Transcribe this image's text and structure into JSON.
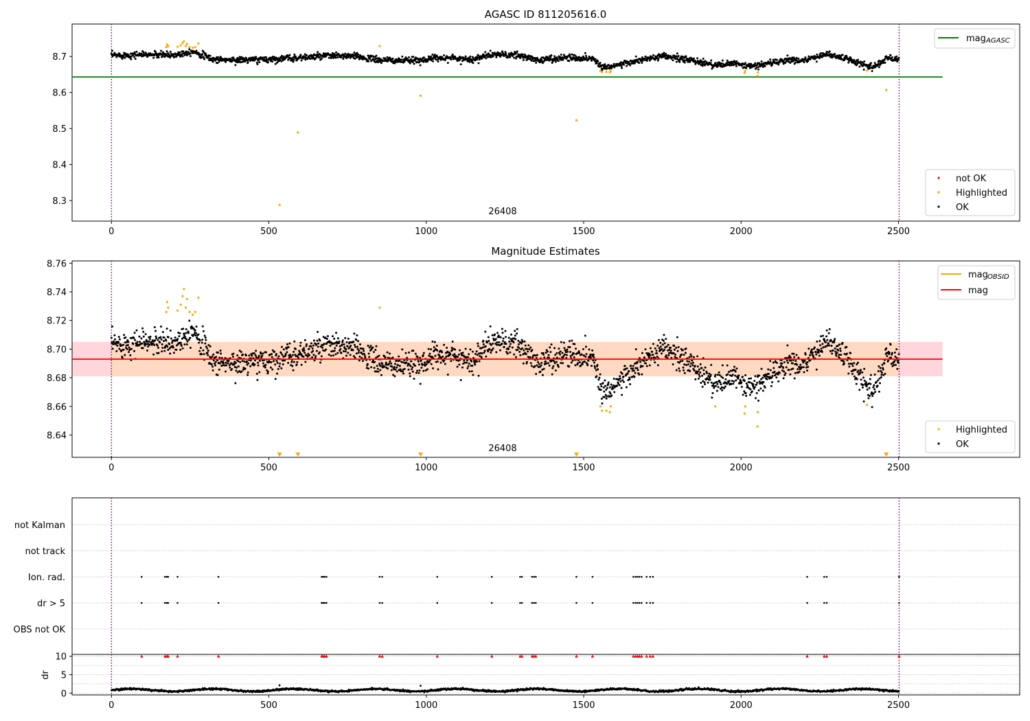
{
  "chart_data": [
    {
      "type": "scatter",
      "title": "AGASC ID 811205616.0",
      "xlim": [
        -125,
        2885
      ],
      "ylim": [
        8.243,
        8.79
      ],
      "xticks": [
        0,
        500,
        1000,
        1500,
        2000,
        2500
      ],
      "yticks": [
        8.3,
        8.4,
        8.5,
        8.6,
        8.7
      ],
      "ytick_labels": [
        "8.3",
        "8.4",
        "8.5",
        "8.6",
        "8.7"
      ],
      "obsid_label": "26408",
      "obsid_boundaries": [
        0,
        2502
      ],
      "legend_lines": [
        {
          "label": "mag",
          "sub": "AGASC",
          "color": "#008000"
        }
      ],
      "legend_points": [
        {
          "label": "not OK",
          "color": "#ff0000"
        },
        {
          "label": "Highlighted",
          "color": "#ffa500"
        },
        {
          "label": "OK",
          "color": "#000000"
        }
      ],
      "hlines": [
        {
          "value": 8.643,
          "x": [
            -125,
            2640
          ],
          "color": "#008000"
        }
      ],
      "trend": [
        [
          0,
          8.703
        ],
        [
          100,
          8.705
        ],
        [
          200,
          8.704
        ],
        [
          260,
          8.715
        ],
        [
          320,
          8.692
        ],
        [
          400,
          8.69
        ],
        [
          500,
          8.692
        ],
        [
          600,
          8.697
        ],
        [
          700,
          8.702
        ],
        [
          780,
          8.7
        ],
        [
          850,
          8.69
        ],
        [
          950,
          8.688
        ],
        [
          1050,
          8.697
        ],
        [
          1150,
          8.692
        ],
        [
          1210,
          8.706
        ],
        [
          1300,
          8.702
        ],
        [
          1350,
          8.69
        ],
        [
          1450,
          8.697
        ],
        [
          1530,
          8.694
        ],
        [
          1560,
          8.67
        ],
        [
          1620,
          8.678
        ],
        [
          1700,
          8.693
        ],
        [
          1760,
          8.7
        ],
        [
          1850,
          8.688
        ],
        [
          1920,
          8.676
        ],
        [
          1980,
          8.68
        ],
        [
          2030,
          8.672
        ],
        [
          2080,
          8.68
        ],
        [
          2150,
          8.69
        ],
        [
          2210,
          8.69
        ],
        [
          2270,
          8.707
        ],
        [
          2330,
          8.695
        ],
        [
          2390,
          8.676
        ],
        [
          2420,
          8.672
        ],
        [
          2470,
          8.696
        ],
        [
          2502,
          8.693
        ]
      ],
      "highlighted": [
        [
          174,
          8.726
        ],
        [
          177,
          8.733
        ],
        [
          180,
          8.729
        ],
        [
          210,
          8.727
        ],
        [
          220,
          8.731
        ],
        [
          226,
          8.737
        ],
        [
          230,
          8.742
        ],
        [
          236,
          8.729
        ],
        [
          240,
          8.735
        ],
        [
          248,
          8.726
        ],
        [
          258,
          8.724
        ],
        [
          266,
          8.726
        ],
        [
          276,
          8.736
        ],
        [
          852,
          8.729
        ],
        [
          982,
          8.591
        ],
        [
          534,
          8.288
        ],
        [
          592,
          8.489
        ],
        [
          1477,
          8.523
        ],
        [
          1553,
          8.66
        ],
        [
          1558,
          8.657
        ],
        [
          1572,
          8.657
        ],
        [
          1583,
          8.656
        ],
        [
          1586,
          8.66
        ],
        [
          2011,
          8.655
        ],
        [
          2013,
          8.66
        ],
        [
          2052,
          8.646
        ],
        [
          2053,
          8.656
        ],
        [
          2400,
          8.661
        ],
        [
          2461,
          8.607
        ]
      ]
    },
    {
      "type": "scatter",
      "title": "Magnitude Estimates",
      "xlim": [
        -125,
        2885
      ],
      "ylim": [
        8.6244,
        8.7616
      ],
      "xticks": [
        0,
        500,
        1000,
        1500,
        2000,
        2500
      ],
      "yticks": [
        8.64,
        8.66,
        8.68,
        8.7,
        8.72,
        8.74,
        8.76
      ],
      "ytick_labels": [
        "8.64",
        "8.66",
        "8.68",
        "8.70",
        "8.72",
        "8.74",
        "8.76"
      ],
      "obsid_label": "26408",
      "obsid_boundaries": [
        0,
        2502
      ],
      "legend_lines": [
        {
          "label": "mag",
          "sub": "OBSID",
          "color": "#ffa500"
        },
        {
          "label": "mag",
          "sub": "",
          "color": "#ff0000"
        }
      ],
      "legend_points": [
        {
          "label": "Highlighted",
          "color": "#ffa500"
        },
        {
          "label": "OK",
          "color": "#000000"
        }
      ],
      "mag_mean": 8.693,
      "mag_band": [
        8.681,
        8.705
      ],
      "out_of_range_markers": [
        534,
        592,
        982,
        1477,
        2461
      ],
      "highlighted": [
        [
          174,
          8.726
        ],
        [
          177,
          8.733
        ],
        [
          180,
          8.729
        ],
        [
          210,
          8.727
        ],
        [
          220,
          8.731
        ],
        [
          226,
          8.737
        ],
        [
          230,
          8.742
        ],
        [
          236,
          8.729
        ],
        [
          240,
          8.735
        ],
        [
          248,
          8.726
        ],
        [
          258,
          8.724
        ],
        [
          266,
          8.726
        ],
        [
          276,
          8.736
        ],
        [
          852,
          8.729
        ],
        [
          1553,
          8.66
        ],
        [
          1558,
          8.657
        ],
        [
          1572,
          8.657
        ],
        [
          1583,
          8.656
        ],
        [
          1586,
          8.66
        ],
        [
          1918,
          8.66
        ],
        [
          2011,
          8.655
        ],
        [
          2013,
          8.66
        ],
        [
          2052,
          8.646
        ],
        [
          2053,
          8.656
        ],
        [
          2400,
          8.661
        ]
      ]
    },
    {
      "type": "scatter",
      "xlim": [
        -125,
        2885
      ],
      "categories": [
        "not Kalman",
        "not track",
        "Ion. rad.",
        "dr > 5",
        "OBS not OK"
      ],
      "ion_rad_flags": [
        96,
        170,
        176,
        180,
        210,
        340,
        668,
        672,
        677,
        683,
        852,
        860,
        1035,
        1208,
        1298,
        1304,
        1336,
        1342,
        1348,
        1477,
        1528,
        1658,
        1665,
        1671,
        1677,
        1684,
        1700,
        1711,
        1720,
        2210,
        2264,
        2272,
        2502
      ],
      "dr_gt5_flags": [
        96,
        170,
        176,
        180,
        210,
        340,
        668,
        672,
        677,
        683,
        852,
        860,
        1035,
        1208,
        1298,
        1304,
        1336,
        1342,
        1348,
        1477,
        1528,
        1658,
        1665,
        1671,
        1677,
        1684,
        1700,
        1711,
        1720,
        2210,
        2264,
        2272,
        2502
      ],
      "obsid_boundaries": [
        0,
        2502
      ]
    },
    {
      "type": "scatter",
      "xlim": [
        -125,
        2885
      ],
      "ylim": [
        -0.5,
        10.5
      ],
      "xticks": [
        0,
        500,
        1000,
        1500,
        2000,
        2500
      ],
      "yticks": [
        0,
        5,
        10
      ],
      "ylabel": "dr",
      "obsid_boundaries": [
        0,
        2502
      ],
      "clipped_markers": [
        96,
        170,
        176,
        180,
        210,
        340,
        668,
        672,
        677,
        683,
        852,
        860,
        1035,
        1208,
        1298,
        1304,
        1336,
        1342,
        1348,
        1477,
        1528,
        1658,
        1665,
        1671,
        1677,
        1684,
        1700,
        1711,
        1720,
        2210,
        2264,
        2272,
        2502
      ],
      "extra_points": [
        [
          534,
          2.1
        ],
        [
          982,
          2.0
        ]
      ]
    }
  ]
}
